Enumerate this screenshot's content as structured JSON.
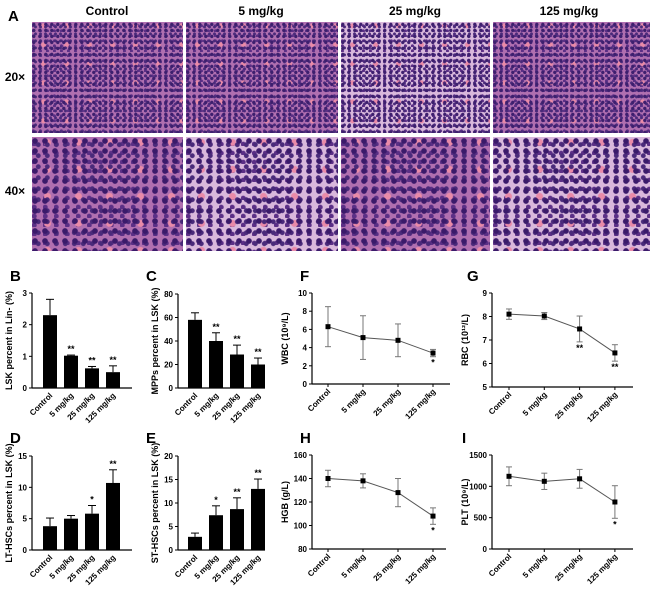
{
  "panel_a": {
    "label": "A",
    "columns": [
      "Control",
      "5 mg/kg",
      "25 mg/kg",
      "125 mg/kg"
    ],
    "rows": [
      "20×",
      "40×"
    ]
  },
  "chart_data": [
    {
      "panel": "B",
      "type": "bar",
      "categories": [
        "Control",
        "5 mg/kg",
        "25 mg/kg",
        "125 mg/kg"
      ],
      "values": [
        2.3,
        1.02,
        0.62,
        0.5
      ],
      "errors": [
        0.5,
        0.02,
        0.06,
        0.2
      ],
      "significance": [
        "",
        "**",
        "**",
        "**"
      ],
      "ylabel": "LSK percent in Lin- (%)",
      "ylim": [
        0,
        3
      ],
      "yticks": [
        "0",
        "1",
        "2",
        "3"
      ]
    },
    {
      "panel": "C",
      "type": "bar",
      "categories": [
        "Control",
        "5 mg/kg",
        "25 mg/kg",
        "125 mg/kg"
      ],
      "values": [
        58,
        40,
        28.5,
        20
      ],
      "errors": [
        6,
        7,
        8,
        5.5
      ],
      "significance": [
        "",
        "**",
        "**",
        "**"
      ],
      "ylabel": "MPPs percent in LSK (%)",
      "ylim": [
        0,
        80
      ],
      "yticks": [
        "0",
        "20",
        "40",
        "60",
        "80"
      ]
    },
    {
      "panel": "D",
      "type": "bar",
      "categories": [
        "Control",
        "5 mg/kg",
        "25 mg/kg",
        "125 mg/kg"
      ],
      "values": [
        3.8,
        5.0,
        5.8,
        10.7
      ],
      "errors": [
        1.3,
        0.5,
        1.3,
        2.1
      ],
      "significance": [
        "",
        "",
        "*",
        "**"
      ],
      "ylabel": "LT-HSCs percent in LSK (%)",
      "ylim": [
        0,
        15
      ],
      "yticks": [
        "0",
        "5",
        "10",
        "15"
      ]
    },
    {
      "panel": "E",
      "type": "bar",
      "categories": [
        "Control",
        "5 mg/kg",
        "25 mg/kg",
        "125 mg/kg"
      ],
      "values": [
        2.8,
        7.4,
        8.7,
        13.0
      ],
      "errors": [
        0.8,
        2.0,
        2.4,
        2.1
      ],
      "significance": [
        "",
        "*",
        "**",
        "**"
      ],
      "ylabel": "ST-HSCs percent in LSK (%)",
      "ylim": [
        0,
        20
      ],
      "yticks": [
        "0",
        "5",
        "10",
        "15",
        "20"
      ]
    },
    {
      "panel": "F",
      "type": "line",
      "categories": [
        "Control",
        "5 mg/kg",
        "25 mg/kg",
        "125 mg/kg"
      ],
      "values": [
        6.3,
        5.1,
        4.8,
        3.4
      ],
      "errors": [
        2.2,
        2.4,
        1.8,
        0.4
      ],
      "significance": [
        "",
        "",
        "",
        "*"
      ],
      "ylabel": "WBC (10⁹/L)",
      "ylim": [
        0,
        10
      ],
      "yticks": [
        "0",
        "2",
        "4",
        "6",
        "8",
        "10"
      ]
    },
    {
      "panel": "G",
      "type": "line",
      "categories": [
        "Control",
        "5 mg/kg",
        "25 mg/kg",
        "125 mg/kg"
      ],
      "values": [
        8.1,
        8.02,
        7.47,
        6.45
      ],
      "errors": [
        0.22,
        0.15,
        0.55,
        0.35
      ],
      "significance": [
        "",
        "",
        "**",
        "**"
      ],
      "ylabel": "RBC (10¹²/L)",
      "ylim": [
        5,
        9
      ],
      "yticks": [
        "5",
        "6",
        "7",
        "8",
        "9"
      ]
    },
    {
      "panel": "H",
      "type": "line",
      "categories": [
        "Control",
        "5 mg/kg",
        "25 mg/kg",
        "125 mg/kg"
      ],
      "values": [
        140,
        138,
        128,
        108
      ],
      "errors": [
        7,
        6,
        12,
        7
      ],
      "significance": [
        "",
        "",
        "",
        "*"
      ],
      "ylabel": "HGB (g/L)",
      "ylim": [
        80,
        160
      ],
      "yticks": [
        "80",
        "100",
        "120",
        "140",
        "160"
      ]
    },
    {
      "panel": "I",
      "type": "line",
      "categories": [
        "Control",
        "5 mg/kg",
        "25 mg/kg",
        "125 mg/kg"
      ],
      "values": [
        1160,
        1080,
        1120,
        750
      ],
      "errors": [
        150,
        130,
        150,
        260
      ],
      "significance": [
        "",
        "",
        "",
        "*"
      ],
      "ylabel": "PLT (10⁹/L)",
      "ylim": [
        0,
        1500
      ],
      "yticks": [
        "0",
        "500",
        "1000",
        "1500"
      ]
    }
  ]
}
